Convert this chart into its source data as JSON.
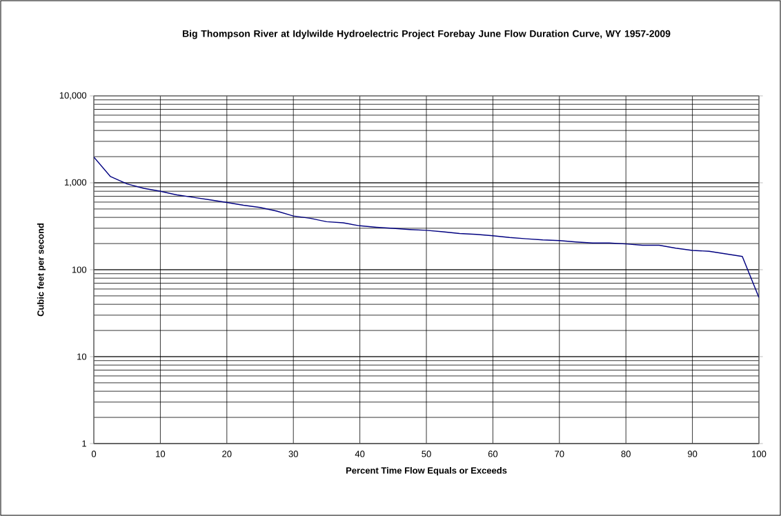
{
  "chart_data": {
    "type": "line",
    "title": "Big Thompson River at Idylwilde Hydroelectric Project Forebay June Flow Duration Curve, WY 1957-2009",
    "xlabel": "Percent Time Flow Equals or Exceeds",
    "ylabel": "Cubic feet per second",
    "x": [
      0,
      2.5,
      5,
      7.5,
      10,
      12.5,
      15,
      17.5,
      20,
      22.5,
      25,
      27.5,
      30,
      32.5,
      35,
      37.5,
      40,
      42.5,
      45,
      47.5,
      50,
      52.5,
      55,
      57.5,
      60,
      62.5,
      65,
      67.5,
      70,
      72.5,
      75,
      77.5,
      80,
      82.5,
      85,
      87.5,
      90,
      92.5,
      95,
      97.5,
      100
    ],
    "series": [
      {
        "color": "#000080",
        "values": [
          1980,
          1180,
          970,
          865,
          800,
          726,
          680,
          636,
          594,
          552,
          520,
          472,
          415,
          391,
          357,
          346,
          320,
          308,
          299,
          290,
          284,
          273,
          261,
          255,
          246,
          235,
          227,
          220,
          216,
          209,
          203,
          203,
          198,
          191,
          191,
          177,
          167,
          163,
          152,
          142,
          48
        ]
      }
    ],
    "xlim": [
      0,
      100
    ],
    "ylim": [
      1,
      10000
    ],
    "log": "y",
    "xticks": [
      0,
      10,
      20,
      30,
      40,
      50,
      60,
      70,
      80,
      90,
      100
    ],
    "yticks": [
      1,
      10,
      100,
      {
        "value": 1000,
        "label": "1,000"
      },
      {
        "value": 10000,
        "label": "10,000"
      }
    ],
    "grid": true,
    "legend": false,
    "marker": "none",
    "line_style": "solid"
  }
}
